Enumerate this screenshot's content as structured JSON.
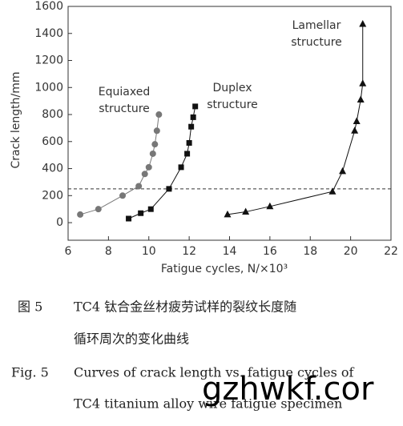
{
  "chart_data": {
    "type": "line",
    "ylabel": "Crack length/mm",
    "xlabel": "Fatigue cycles, N/×10³",
    "xlim": [
      6,
      22
    ],
    "xticks": [
      6,
      8,
      10,
      12,
      14,
      16,
      18,
      20,
      22
    ],
    "ylim": [
      -130,
      1600
    ],
    "yticks": [
      0,
      200,
      400,
      600,
      800,
      1000,
      1200,
      1400,
      1600
    ],
    "threshold": 250,
    "series": [
      {
        "name": "Equiaxed structure",
        "label_lines": [
          "Equiaxed",
          "structure"
        ],
        "marker": "circle",
        "color": "#777777",
        "x": [
          6.6,
          7.5,
          8.7,
          9.5,
          9.8,
          10.0,
          10.2,
          10.3,
          10.4,
          10.5
        ],
        "values": [
          60,
          100,
          200,
          270,
          360,
          410,
          510,
          580,
          680,
          800
        ]
      },
      {
        "name": "Duplex structure",
        "label_lines": [
          "Duplex",
          "structure"
        ],
        "marker": "square",
        "color": "#111111",
        "x": [
          9.0,
          9.6,
          10.1,
          11.0,
          11.6,
          11.9,
          12.0,
          12.1,
          12.2,
          12.3
        ],
        "values": [
          30,
          70,
          100,
          250,
          410,
          510,
          590,
          710,
          780,
          860
        ]
      },
      {
        "name": "Lamellar structure",
        "label_lines": [
          "Lamellar",
          "structure"
        ],
        "marker": "triangle",
        "color": "#111111",
        "x": [
          13.9,
          14.8,
          16.0,
          19.1,
          19.6,
          20.2,
          20.3,
          20.5,
          20.6,
          20.6
        ],
        "values": [
          60,
          80,
          120,
          230,
          380,
          680,
          750,
          910,
          1030,
          1470
        ]
      }
    ]
  },
  "caption_cn": {
    "label": "图 5",
    "lines": [
      "TC4 钛合金丝材疲劳试样的裂纹长度随",
      "循环周次的变化曲线"
    ]
  },
  "caption_en": {
    "label": "Fig. 5",
    "lines": [
      "Curves of crack length vs. fatigue cycles of",
      "TC4 titanium alloy wire fatigue specimen"
    ]
  },
  "watermark": "gzhwkf.cor"
}
